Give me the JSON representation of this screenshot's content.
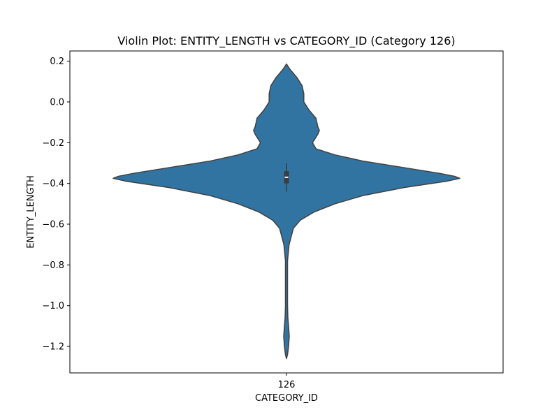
{
  "chart_data": {
    "type": "violin",
    "title": "Violin Plot: ENTITY_LENGTH vs CATEGORY_ID (Category 126)",
    "xlabel": "CATEGORY_ID",
    "ylabel": "ENTITY_LENGTH",
    "categories": [
      "126"
    ],
    "ylim": [
      -1.33,
      0.25
    ],
    "yticks": [
      0.2,
      0.0,
      -0.2,
      -0.4,
      -0.6,
      -0.8,
      -1.0,
      -1.2
    ],
    "ytick_labels": [
      "0.2",
      "0.0",
      "−0.2",
      "−0.4",
      "−0.6",
      "−0.8",
      "−1.0",
      "−1.2"
    ],
    "grid": false,
    "color": "#3274a1",
    "edge_color": "#404040",
    "violins": [
      {
        "category": "126",
        "density_profile": [
          {
            "y": 0.186,
            "w": 0.0
          },
          {
            "y": 0.16,
            "w": 0.02
          },
          {
            "y": 0.12,
            "w": 0.06
          },
          {
            "y": 0.08,
            "w": 0.09
          },
          {
            "y": 0.04,
            "w": 0.1
          },
          {
            "y": 0.0,
            "w": 0.1
          },
          {
            "y": -0.04,
            "w": 0.13
          },
          {
            "y": -0.08,
            "w": 0.17
          },
          {
            "y": -0.12,
            "w": 0.18
          },
          {
            "y": -0.14,
            "w": 0.19
          },
          {
            "y": -0.16,
            "w": 0.18
          },
          {
            "y": -0.2,
            "w": 0.15
          },
          {
            "y": -0.23,
            "w": 0.17
          },
          {
            "y": -0.26,
            "w": 0.28
          },
          {
            "y": -0.29,
            "w": 0.44
          },
          {
            "y": -0.32,
            "w": 0.66
          },
          {
            "y": -0.35,
            "w": 0.88
          },
          {
            "y": -0.365,
            "w": 0.97
          },
          {
            "y": -0.375,
            "w": 1.0
          },
          {
            "y": -0.39,
            "w": 0.92
          },
          {
            "y": -0.42,
            "w": 0.68
          },
          {
            "y": -0.46,
            "w": 0.44
          },
          {
            "y": -0.5,
            "w": 0.28
          },
          {
            "y": -0.54,
            "w": 0.16
          },
          {
            "y": -0.58,
            "w": 0.08
          },
          {
            "y": -0.62,
            "w": 0.04
          },
          {
            "y": -0.7,
            "w": 0.015
          },
          {
            "y": -0.78,
            "w": 0.006
          },
          {
            "y": -0.9,
            "w": 0.006
          },
          {
            "y": -1.0,
            "w": 0.006
          },
          {
            "y": -1.06,
            "w": 0.008
          },
          {
            "y": -1.1,
            "w": 0.012
          },
          {
            "y": -1.15,
            "w": 0.016
          },
          {
            "y": -1.2,
            "w": 0.012
          },
          {
            "y": -1.24,
            "w": 0.006
          },
          {
            "y": -1.26,
            "w": 0.0
          }
        ],
        "whisker": [
          -0.44,
          -0.3
        ],
        "box": [
          -0.4,
          -0.34
        ],
        "median": -0.37
      }
    ]
  }
}
